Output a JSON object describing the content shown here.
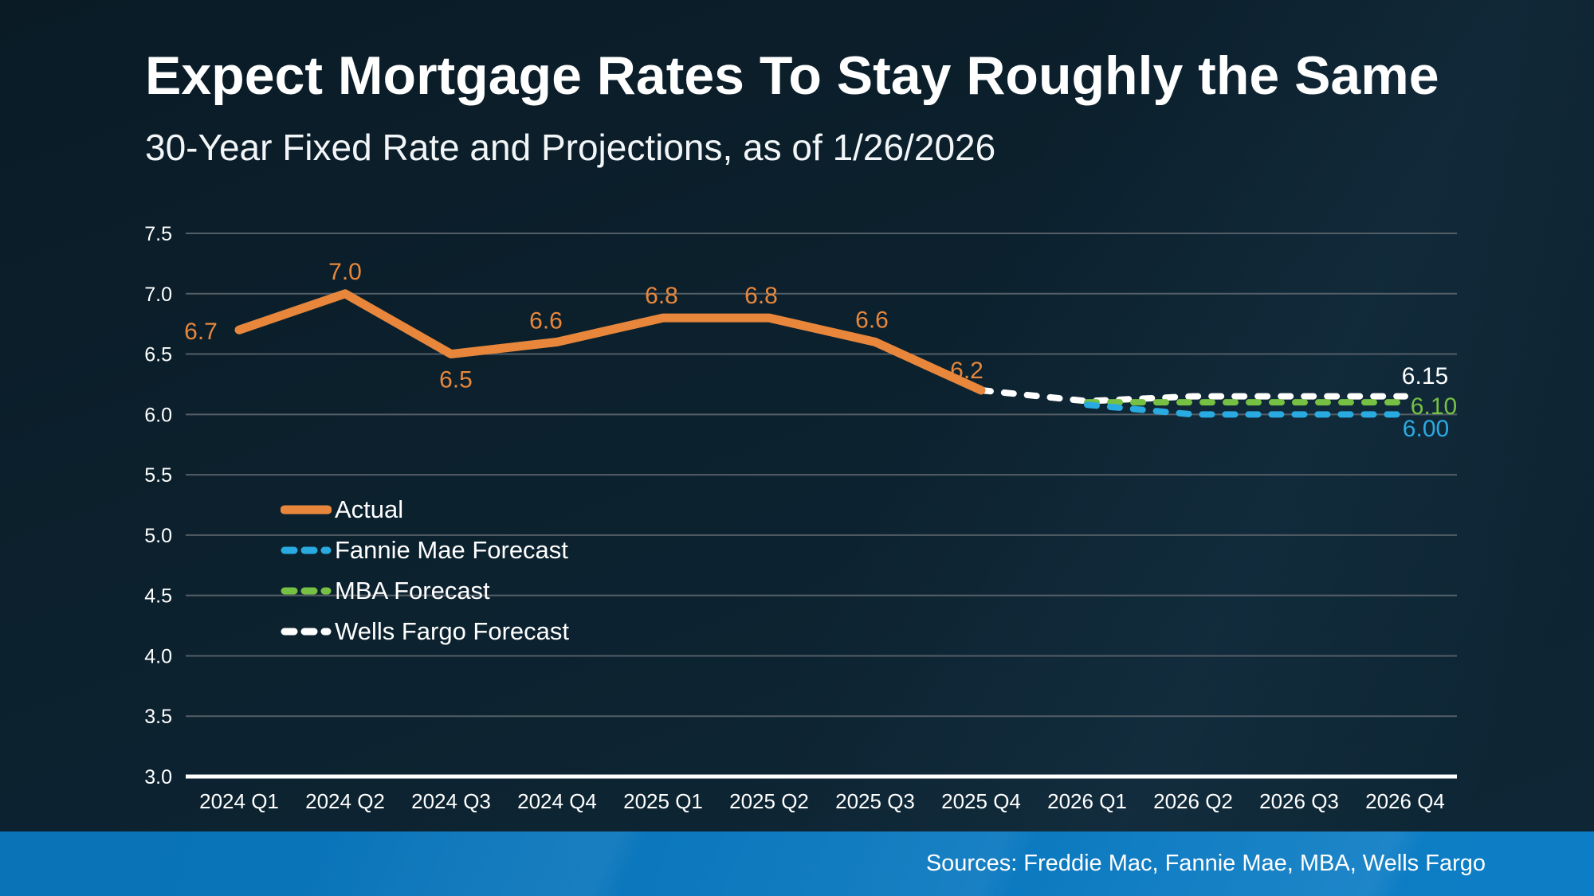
{
  "title": "Expect Mortgage Rates To Stay Roughly the Same",
  "subtitle": "30-Year Fixed Rate and Projections, as of 1/26/2026",
  "footer": {
    "sources": "Sources: Freddie Mac, Fannie Mae, MBA, Wells Fargo"
  },
  "colors": {
    "background_top": "#0a1b26",
    "background_bottom": "#0e2736",
    "footer_blue_left": "#0a72b6",
    "footer_blue_right": "#0d7ec6",
    "grid": "#545e66",
    "axis": "#ffffff",
    "actual_orange": "#e8873b",
    "fannie_blue": "#29abe2",
    "mba_green": "#76c043",
    "wells_white": "#ffffff"
  },
  "chart_data": {
    "type": "line",
    "categories": [
      "2024 Q1",
      "2024 Q2",
      "2024 Q3",
      "2024 Q4",
      "2025 Q1",
      "2025 Q2",
      "2025 Q3",
      "2025 Q4",
      "2026 Q1",
      "2026 Q2",
      "2026 Q3",
      "2026 Q4"
    ],
    "ylim": [
      3.0,
      7.5
    ],
    "ytick_step": 0.5,
    "yticks": [
      "7.5",
      "7.0",
      "6.5",
      "6.0",
      "5.5",
      "5.0",
      "4.5",
      "4.0",
      "3.5",
      "3.0"
    ],
    "grid": true,
    "legend_position": "inside-left",
    "series": [
      {
        "name": "Actual",
        "color": "#e8873b",
        "style": "solid",
        "start_index": 0,
        "values": [
          6.7,
          7.0,
          6.5,
          6.6,
          6.8,
          6.8,
          6.6,
          6.2
        ],
        "point_labels": [
          "6.7",
          "7.0",
          "6.5",
          "6.6",
          "6.8",
          "6.8",
          "6.6",
          "6.2"
        ]
      },
      {
        "name": "Wells Fargo Forecast",
        "color": "#ffffff",
        "style": "dashed",
        "start_index": 7,
        "values": [
          6.2,
          6.11,
          6.15,
          6.15,
          6.15
        ],
        "end_label": "6.15"
      },
      {
        "name": "MBA Forecast",
        "color": "#76c043",
        "style": "dashed",
        "start_index": 8,
        "values": [
          6.1,
          6.1,
          6.1,
          6.1
        ],
        "end_label": "6.10"
      },
      {
        "name": "Fannie Mae Forecast",
        "color": "#29abe2",
        "style": "dashed",
        "start_index": 8,
        "values": [
          6.08,
          6.0,
          6.0,
          6.0
        ],
        "end_label": "6.00"
      }
    ],
    "legend": [
      {
        "label": "Actual",
        "series_index": 0
      },
      {
        "label": "Fannie Mae Forecast",
        "series_index": 3
      },
      {
        "label": "MBA Forecast",
        "series_index": 2
      },
      {
        "label": "Wells Fargo Forecast",
        "series_index": 1
      }
    ]
  }
}
